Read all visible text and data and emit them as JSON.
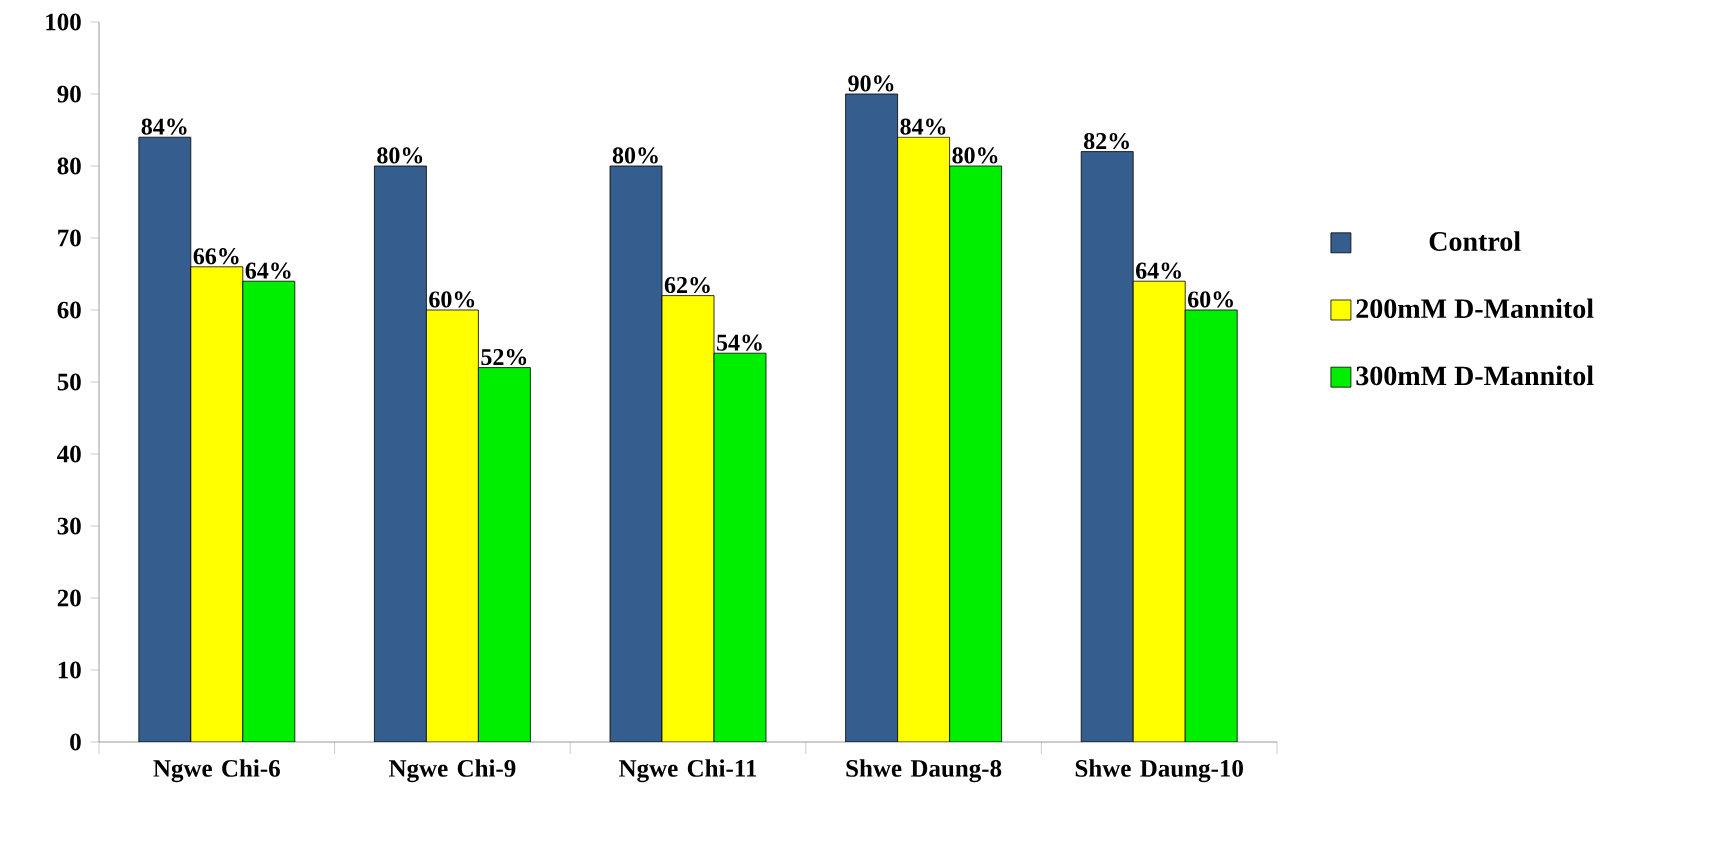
{
  "chart_data": {
    "type": "bar",
    "categories": [
      "Ngwe Chi-6",
      "Ngwe Chi-9",
      "Ngwe Chi-11",
      "Shwe Daung-8",
      "Shwe Daung-10"
    ],
    "series": [
      {
        "name": "Control",
        "color": "#355e8e",
        "values": [
          84,
          80,
          80,
          90,
          82
        ],
        "value_labels": [
          "84%",
          "80%",
          "80%",
          "90%",
          "82%"
        ]
      },
      {
        "name": "200mM D-Mannitol",
        "color": "#ffff00",
        "values": [
          66,
          60,
          62,
          84,
          64
        ],
        "value_labels": [
          "66%",
          "60%",
          "62%",
          "84%",
          "64%"
        ]
      },
      {
        "name": "300mM D-Mannitol",
        "color": "#00ee00",
        "values": [
          64,
          52,
          54,
          80,
          60
        ],
        "value_labels": [
          "64%",
          "52%",
          "54%",
          "80%",
          "60%"
        ]
      }
    ],
    "ylim": [
      0,
      100
    ],
    "yticks": [
      0,
      10,
      20,
      30,
      40,
      50,
      60,
      70,
      80,
      90,
      100
    ],
    "grid": false,
    "legend": "right"
  }
}
